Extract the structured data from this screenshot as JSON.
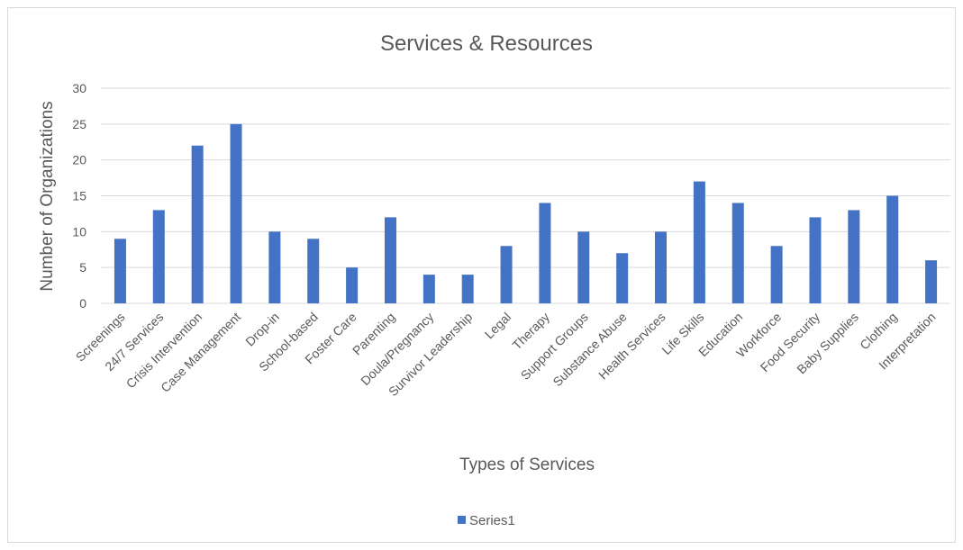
{
  "chart_data": {
    "type": "bar",
    "title": "Services & Resources",
    "xlabel": "Types of Services",
    "ylabel": "Number of Organizations",
    "ylim": [
      0,
      30
    ],
    "yticks": [
      0,
      5,
      10,
      15,
      20,
      25,
      30
    ],
    "grid": true,
    "legend_position": "bottom",
    "categories": [
      "Screenings",
      "24/7 Services",
      "Crisis Intervention",
      "Case Management",
      "Drop-in",
      "School-based",
      "Foster Care",
      "Parenting",
      "Doula/Pregnancy",
      "Survivor Leadership",
      "Legal",
      "Therapy",
      "Support Groups",
      "Substance Abuse",
      "Health Services",
      "Life Skills",
      "Education",
      "Workforce",
      "Food Security",
      "Baby Supplies",
      "Clothing",
      "Interpretation"
    ],
    "series": [
      {
        "name": "Series1",
        "color": "#4472c4",
        "values": [
          9,
          13,
          22,
          25,
          10,
          9,
          5,
          12,
          4,
          4,
          8,
          14,
          10,
          7,
          10,
          17,
          14,
          8,
          12,
          13,
          15,
          6
        ]
      }
    ]
  }
}
